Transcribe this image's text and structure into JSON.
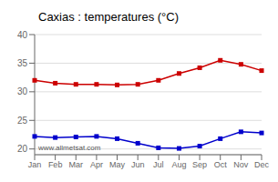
{
  "chart_data": {
    "type": "line",
    "title": "Caxias : temperatures (°C)",
    "categories": [
      "Jan",
      "Feb",
      "Mar",
      "Apr",
      "May",
      "Jun",
      "Jul",
      "Aug",
      "Sep",
      "Oct",
      "Nov",
      "Dec"
    ],
    "series": [
      {
        "color": "#cc0000",
        "marker": "square",
        "values": [
          32.0,
          31.5,
          31.3,
          31.3,
          31.2,
          31.3,
          32.0,
          33.2,
          34.2,
          35.5,
          34.8,
          33.7
        ]
      },
      {
        "color": "#0000cc",
        "marker": "square",
        "values": [
          22.2,
          22.0,
          22.1,
          22.2,
          21.8,
          21.0,
          20.2,
          20.1,
          20.5,
          21.8,
          23.0,
          22.8
        ]
      }
    ],
    "ylim": [
      19,
      40
    ],
    "yticks": [
      20,
      25,
      30,
      35,
      40
    ],
    "grid": true,
    "annotations": [
      "www.allmetsat.com"
    ]
  }
}
